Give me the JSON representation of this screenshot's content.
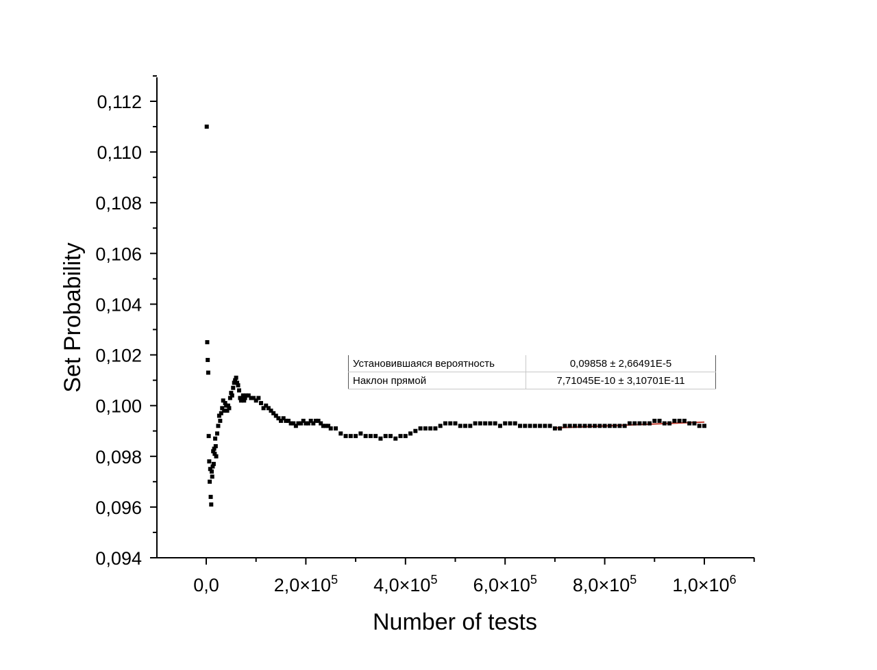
{
  "chart_data": {
    "type": "scatter",
    "title": "",
    "xlabel": "Number of tests",
    "ylabel": "Set Probability",
    "xlim": [
      -100000,
      1100000
    ],
    "ylim": [
      0.094,
      0.113
    ],
    "grid": false,
    "x_ticks": [
      {
        "value": 0,
        "label": "0,0",
        "exp": ""
      },
      {
        "value": 200000,
        "label": "2,0×10",
        "exp": "5"
      },
      {
        "value": 400000,
        "label": "4,0×10",
        "exp": "5"
      },
      {
        "value": 600000,
        "label": "6,0×10",
        "exp": "5"
      },
      {
        "value": 800000,
        "label": "8,0×10",
        "exp": "5"
      },
      {
        "value": 1000000,
        "label": "1,0×10",
        "exp": "6"
      }
    ],
    "y_ticks": [
      {
        "value": 0.094,
        "label": "0,094"
      },
      {
        "value": 0.096,
        "label": "0,096"
      },
      {
        "value": 0.098,
        "label": "0,098"
      },
      {
        "value": 0.1,
        "label": "0,100"
      },
      {
        "value": 0.102,
        "label": "0,102"
      },
      {
        "value": 0.104,
        "label": "0,104"
      },
      {
        "value": 0.106,
        "label": "0,106"
      },
      {
        "value": 0.108,
        "label": "0,108"
      },
      {
        "value": 0.11,
        "label": "0,110"
      },
      {
        "value": 0.112,
        "label": "0,112"
      }
    ],
    "marker_color": "#000000",
    "fit_color": "#c0392b",
    "series": [
      {
        "marker": "square",
        "x": [
          1000,
          2000,
          3000,
          4000,
          5000,
          6000,
          7000,
          8000,
          9000,
          10000,
          11000,
          12000,
          13000,
          14000,
          15000,
          16000,
          17000,
          18000,
          19000,
          20000,
          22000,
          24000,
          26000,
          28000,
          30000,
          32000,
          34000,
          36000,
          38000,
          40000,
          42000,
          44000,
          46000,
          48000,
          50000,
          52000,
          54000,
          56000,
          58000,
          60000,
          62000,
          64000,
          66000,
          68000,
          70000,
          72000,
          74000,
          76000,
          78000,
          80000,
          85000,
          90000,
          95000,
          100000,
          105000,
          110000,
          115000,
          120000,
          125000,
          130000,
          135000,
          140000,
          145000,
          150000,
          155000,
          160000,
          165000,
          170000,
          175000,
          180000,
          185000,
          190000,
          195000,
          200000,
          205000,
          210000,
          215000,
          220000,
          225000,
          230000,
          235000,
          240000,
          245000,
          250000,
          260000,
          270000,
          280000,
          290000,
          300000,
          310000,
          320000,
          330000,
          340000,
          350000,
          360000,
          370000,
          380000,
          390000,
          400000,
          410000,
          420000,
          430000,
          440000,
          450000,
          460000,
          470000,
          480000,
          490000,
          500000,
          510000,
          520000,
          530000,
          540000,
          550000,
          560000,
          570000,
          580000,
          590000,
          600000,
          610000,
          620000,
          630000,
          640000,
          650000,
          660000,
          670000,
          680000,
          690000,
          700000,
          710000,
          720000,
          730000,
          740000,
          750000,
          760000,
          770000,
          780000,
          790000,
          800000,
          810000,
          820000,
          830000,
          840000,
          850000,
          860000,
          870000,
          880000,
          890000,
          900000,
          910000,
          920000,
          930000,
          940000,
          950000,
          960000,
          970000,
          980000,
          990000,
          1000000
        ],
        "y": [
          0.111,
          0.1025,
          0.1018,
          0.1013,
          0.0988,
          0.0978,
          0.097,
          0.0975,
          0.0964,
          0.0961,
          0.0974,
          0.0972,
          0.0976,
          0.0982,
          0.0977,
          0.0983,
          0.0981,
          0.0987,
          0.0984,
          0.098,
          0.0989,
          0.0992,
          0.0996,
          0.0994,
          0.0997,
          0.0999,
          0.1002,
          0.0998,
          0.1001,
          0.1,
          0.0998,
          0.1,
          0.0999,
          0.1003,
          0.1005,
          0.1004,
          0.1007,
          0.1009,
          0.101,
          0.1011,
          0.1009,
          0.1008,
          0.1006,
          0.1003,
          0.1002,
          0.1003,
          0.1004,
          0.1002,
          0.1003,
          0.1004,
          0.1004,
          0.1003,
          0.1003,
          0.1002,
          0.1003,
          0.1001,
          0.0999,
          0.1,
          0.0999,
          0.0998,
          0.0997,
          0.0996,
          0.0995,
          0.0994,
          0.0995,
          0.0994,
          0.0994,
          0.0993,
          0.0993,
          0.0992,
          0.0993,
          0.0993,
          0.0994,
          0.0993,
          0.0993,
          0.0994,
          0.0993,
          0.0994,
          0.0994,
          0.0993,
          0.0992,
          0.0992,
          0.0992,
          0.0991,
          0.0991,
          0.0989,
          0.0988,
          0.0988,
          0.0988,
          0.0989,
          0.0988,
          0.0988,
          0.0988,
          0.0987,
          0.0988,
          0.0988,
          0.0987,
          0.0988,
          0.0988,
          0.0989,
          0.099,
          0.0991,
          0.0991,
          0.0991,
          0.0991,
          0.0992,
          0.0993,
          0.0993,
          0.0993,
          0.0992,
          0.0992,
          0.0992,
          0.0993,
          0.0993,
          0.0993,
          0.0993,
          0.0993,
          0.0992,
          0.0993,
          0.0993,
          0.0993,
          0.0992,
          0.0992,
          0.0992,
          0.0992,
          0.0992,
          0.0992,
          0.0992,
          0.0991,
          0.0991,
          0.0992,
          0.0992,
          0.0992,
          0.0992,
          0.0992,
          0.0992,
          0.0992,
          0.0992,
          0.0992,
          0.0992,
          0.0992,
          0.0992,
          0.0992,
          0.0993,
          0.0993,
          0.0993,
          0.0993,
          0.0993,
          0.0994,
          0.0994,
          0.0993,
          0.0993,
          0.0994,
          0.0994,
          0.0994,
          0.0993,
          0.0993,
          0.0992,
          0.0992
        ]
      }
    ],
    "fit_line": {
      "x": [
        700000,
        1000000
      ],
      "y": [
        0.09912,
        0.09935
      ]
    },
    "stats_table": {
      "rows": [
        {
          "param": "Установившаяся вероятность",
          "value": "0,09858 ± 2,66491E-5"
        },
        {
          "param": "Наклон прямой",
          "value": "7,71045E-10 ± 3,10701E-11"
        }
      ]
    }
  }
}
